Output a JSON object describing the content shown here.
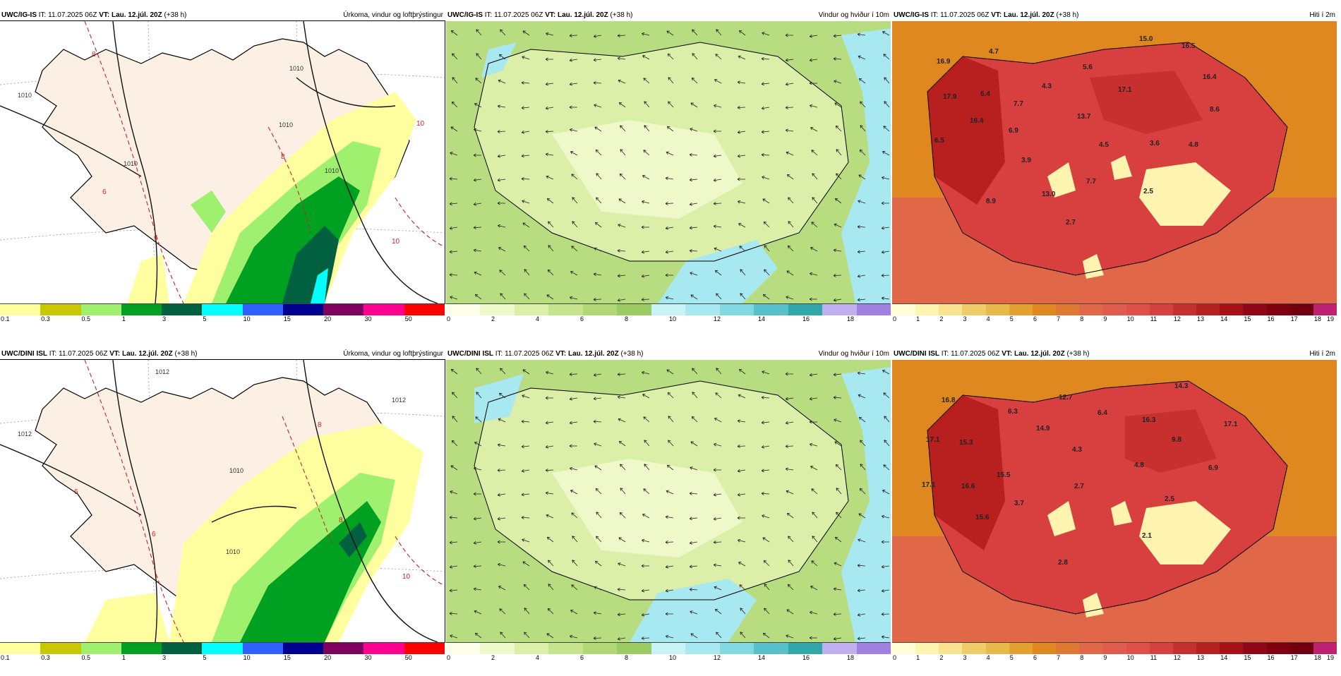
{
  "header": {
    "it_label": "IT:",
    "vt_label": "VT:",
    "init_time": "11.07.2025 06Z",
    "valid_time": "Lau. 12.júl. 20Z",
    "lead": "(+38 h)"
  },
  "models": {
    "top": "UWC/IG-IS",
    "bottom": "UWC/DINI ISL"
  },
  "products": {
    "precip": "Úrkoma, vindur og loftþrýstingur",
    "wind": "Vindur og hviður í 10m",
    "temp": "Hiti í 2m"
  },
  "colorbars": {
    "precip": {
      "colors": [
        "#ffffa0",
        "#c8c800",
        "#a0f070",
        "#00a020",
        "#006040",
        "#00ffff",
        "#3060ff",
        "#000090",
        "#800060",
        "#ff0090",
        "#ff0000"
      ],
      "ticks": [
        "0.1",
        "0.3",
        "0.5",
        "1",
        "3",
        "5",
        "10",
        "15",
        "20",
        "30",
        "50"
      ]
    },
    "wind": {
      "colors": [
        "#fdfde8",
        "#eef8c8",
        "#dbefa8",
        "#c6e48c",
        "#b0d874",
        "#9bcc64",
        "#c8f4f8",
        "#a8e8f0",
        "#80d8e0",
        "#58c0c8",
        "#30a8a8",
        "#c0b0f0",
        "#a080e0"
      ],
      "ticks": [
        "0",
        "2",
        "4",
        "6",
        "8",
        "10",
        "12",
        "14",
        "16",
        "18"
      ]
    },
    "temp": {
      "colors": [
        "#fffcd8",
        "#fff3b0",
        "#f8e490",
        "#f0cc68",
        "#e8b848",
        "#e4a030",
        "#e08820",
        "#e07830",
        "#e06848",
        "#e05c4c",
        "#e05048",
        "#d84040",
        "#c83030",
        "#b82020",
        "#a81018",
        "#900818",
        "#800010",
        "#700010",
        "#c02070"
      ],
      "ticks": [
        "0",
        "1",
        "2",
        "3",
        "4",
        "5",
        "6",
        "7",
        "8",
        "9",
        "10",
        "11",
        "12",
        "13",
        "14",
        "15",
        "16",
        "17",
        "18",
        "19"
      ]
    }
  },
  "top_precip": {
    "isobars": [
      "1010",
      "1010",
      "1010",
      "1010",
      "1010"
    ],
    "isotherms": [
      "6",
      "6",
      "8",
      "8",
      "10",
      "10"
    ]
  },
  "bottom_precip": {
    "isobars": [
      "1012",
      "1012",
      "1010",
      "1010",
      "1012"
    ],
    "isotherms": [
      "6",
      "8",
      "8",
      "10",
      "6"
    ]
  },
  "top_temp_labels": [
    "15.0",
    "16.5",
    "4.7",
    "16.9",
    "5.6",
    "4.3",
    "16.4",
    "6.4",
    "17.1",
    "17.9",
    "7.7",
    "13.7",
    "8.6",
    "16.4",
    "6.9",
    "6.5",
    "4.5",
    "3.6",
    "4.8",
    "3.9",
    "7.7",
    "2.5",
    "13.0",
    "8.9",
    "2.7"
  ],
  "bottom_temp_labels": [
    "14.3",
    "16.8",
    "12.7",
    "6.3",
    "6.4",
    "16.3",
    "14.9",
    "17.1",
    "17.1",
    "15.3",
    "4.3",
    "9.8",
    "6.9",
    "15.5",
    "4.8",
    "17.1",
    "16.6",
    "2.7",
    "3.7",
    "2.5",
    "15.6",
    "2.1",
    "2.8"
  ]
}
